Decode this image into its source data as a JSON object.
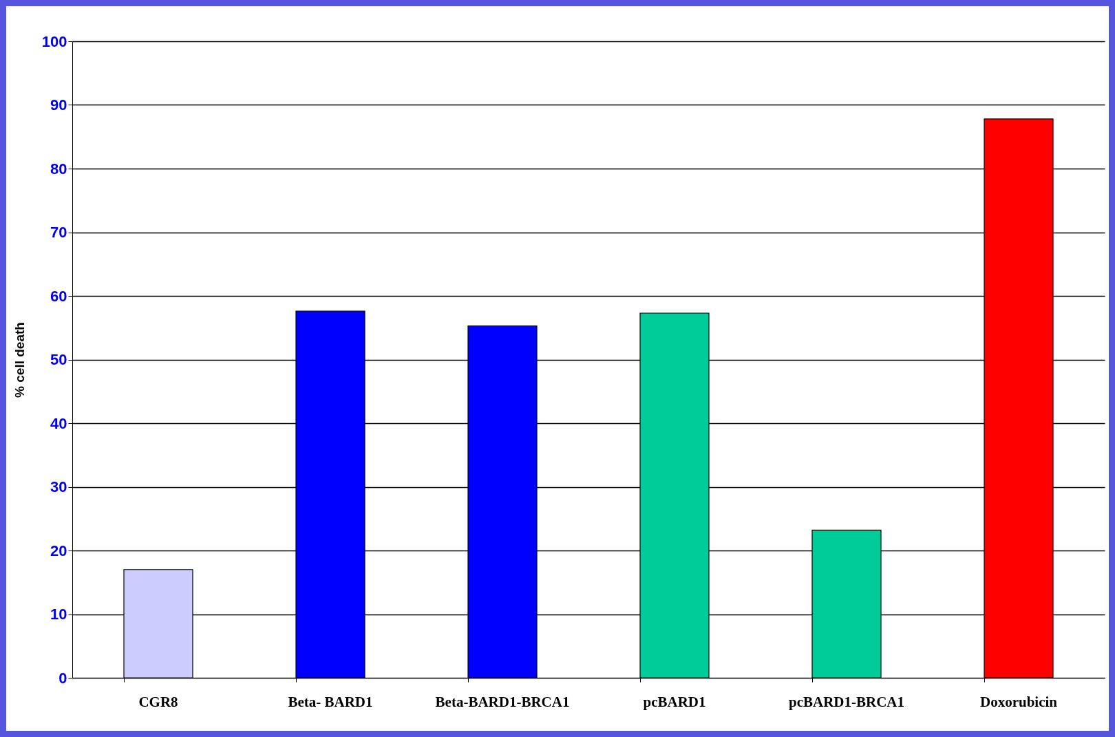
{
  "chart_data": {
    "type": "bar",
    "ylabel": "% cell death",
    "categories": [
      "CGR8",
      "Beta- BARD1",
      "Beta-BARD1-BRCA1",
      "pcBARD1",
      "pcBARD1-BRCA1",
      "Doxorubicin"
    ],
    "values": [
      17,
      57.6,
      55.3,
      57.3,
      23.2,
      87.8
    ],
    "colors": [
      "#ccccff",
      "#0000ff",
      "#0000ff",
      "#00cc99",
      "#00cc99",
      "#ff0000"
    ],
    "ylim": [
      0,
      100
    ],
    "yticks": [
      0,
      10,
      20,
      30,
      40,
      50,
      60,
      70,
      80,
      90,
      100
    ],
    "grid": "y"
  }
}
